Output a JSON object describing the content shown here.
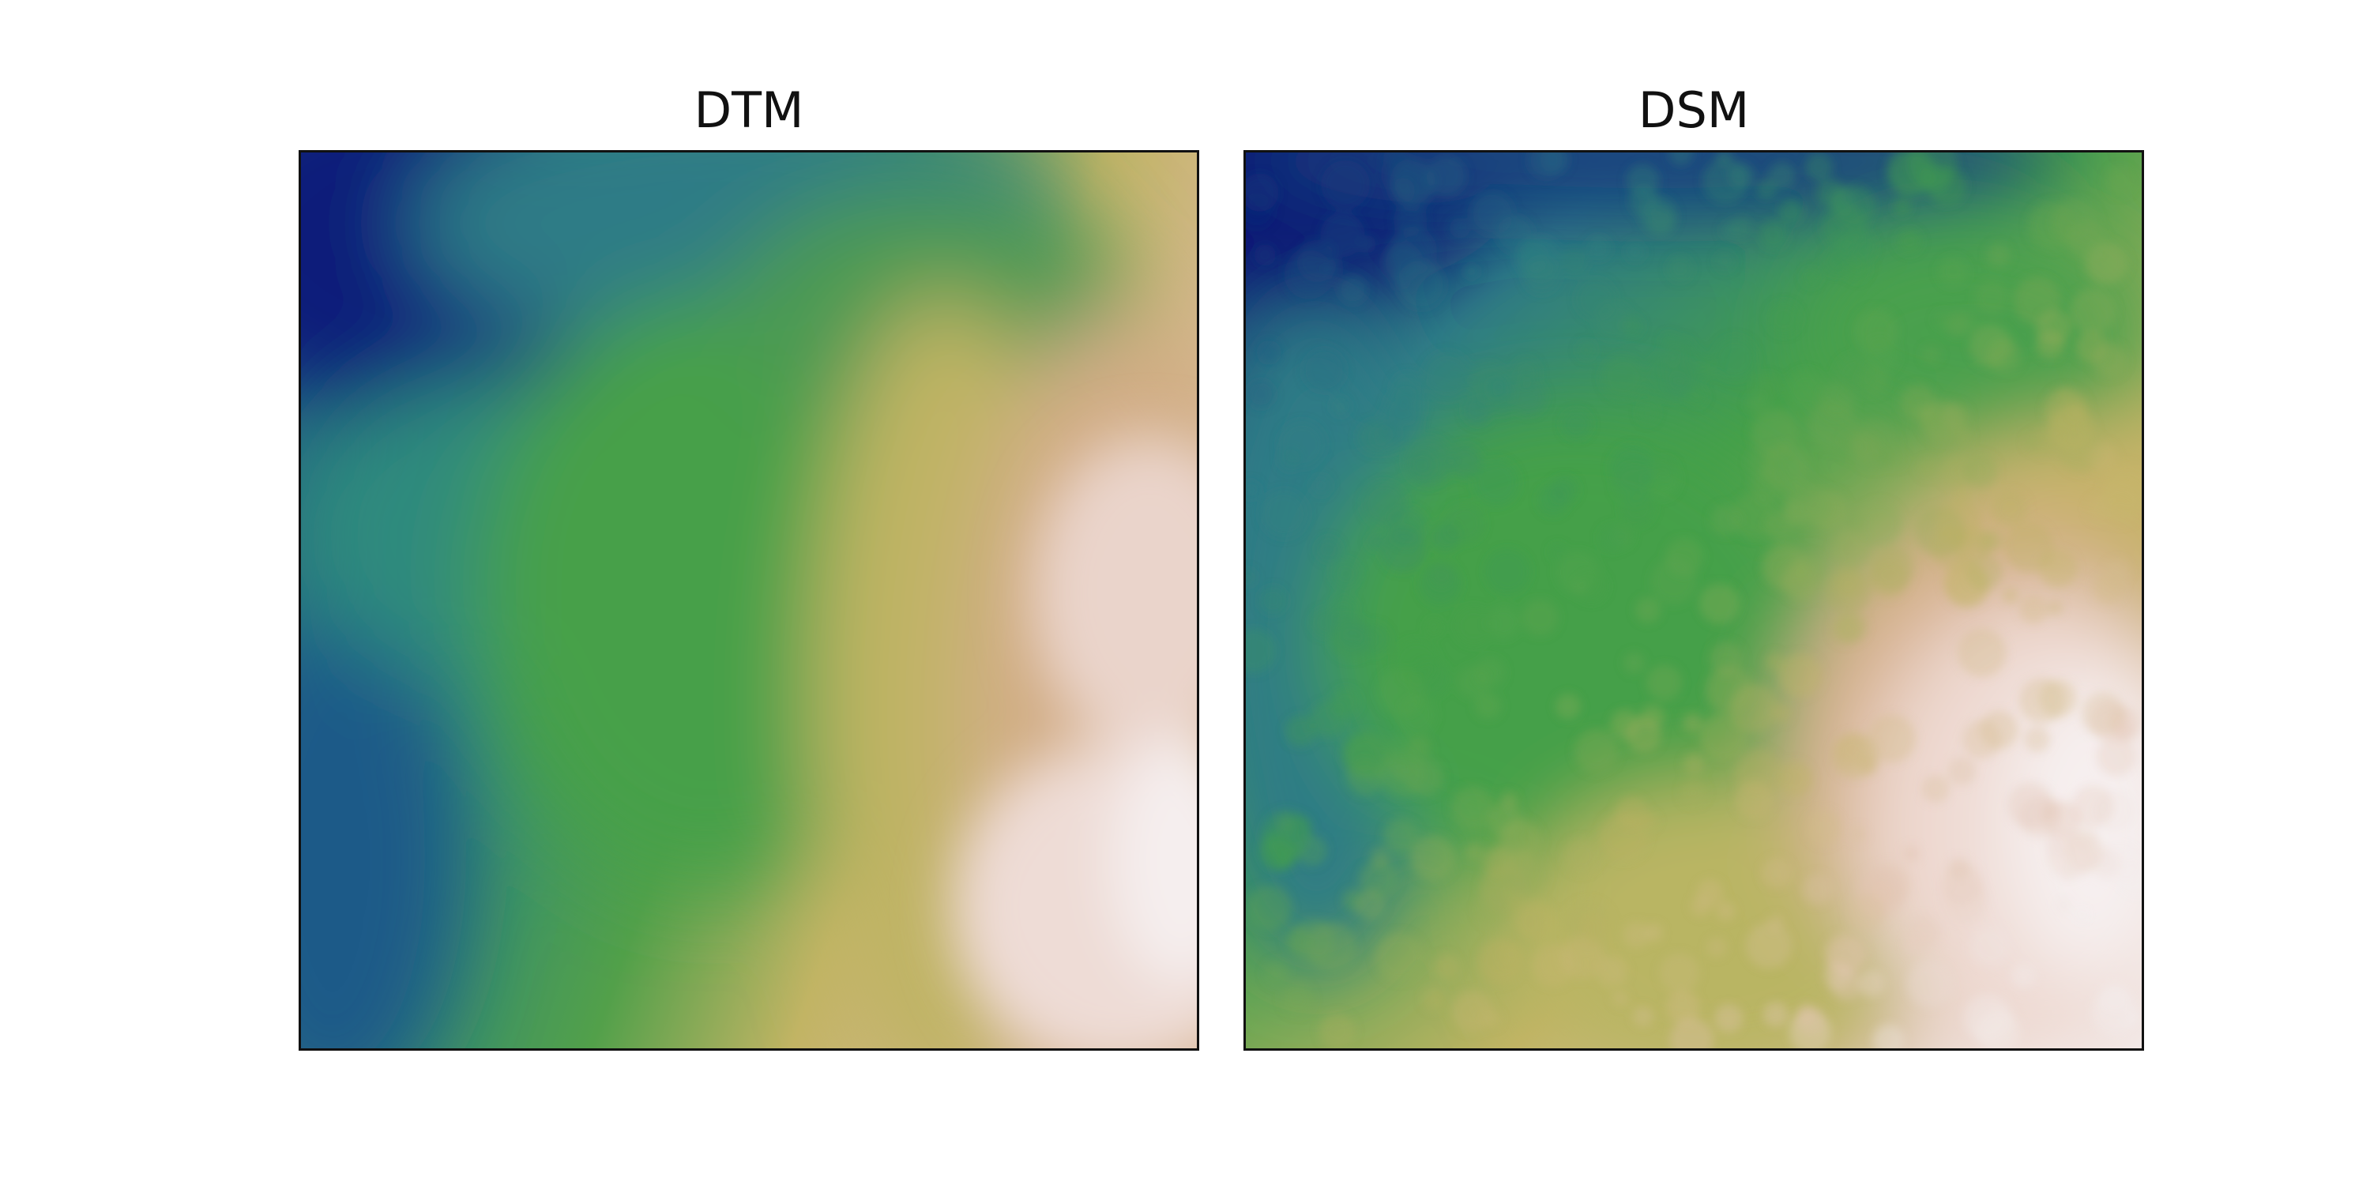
{
  "chart_data": [
    {
      "type": "heatmap",
      "title": "DTM",
      "colormap": "gist_earth-like",
      "colors": {
        "low": "#06106e",
        "mid_low": "#2f7f86",
        "mid": "#43a047",
        "mid_high": "#c2b464",
        "high": "#f4eeee"
      },
      "grid": false,
      "axes_visible": false
    },
    {
      "type": "heatmap",
      "title": "DSM",
      "colormap": "gist_earth-like",
      "colors": {
        "low": "#06106e",
        "mid_low": "#2f7f86",
        "mid": "#43a047",
        "mid_high": "#c2b464",
        "high": "#f4eeee"
      },
      "grid": false,
      "axes_visible": false
    }
  ]
}
